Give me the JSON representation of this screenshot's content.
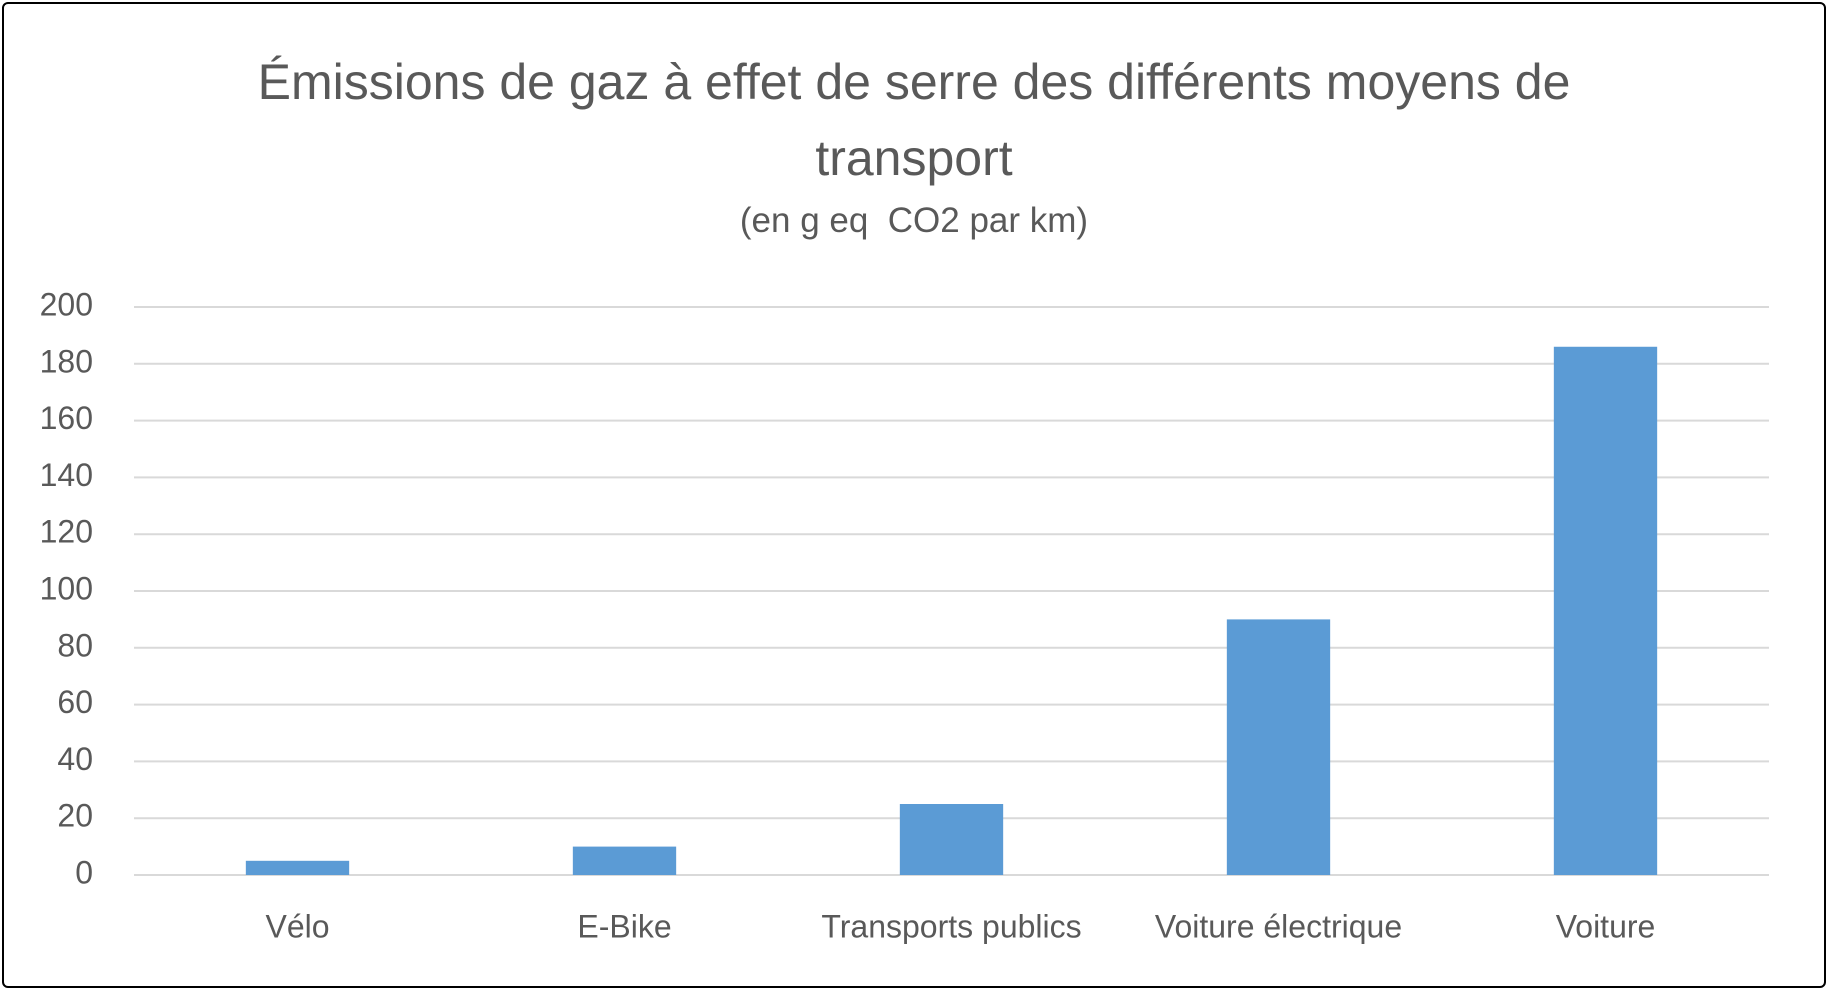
{
  "chart_data": {
    "type": "bar",
    "title": "Émissions de gaz à effet de serre des différents moyens de transport",
    "subtitle": "(en g eq  CO2 par km)",
    "categories": [
      "Vélo",
      "E-Bike",
      "Transports publics",
      "Voiture électrique",
      "Voiture"
    ],
    "values": [
      5,
      10,
      25,
      90,
      186
    ],
    "color": "#5b9bd5",
    "ylim": [
      0,
      200
    ],
    "yticks": [
      0,
      20,
      40,
      60,
      80,
      100,
      120,
      140,
      160,
      180,
      200
    ],
    "grid": true
  }
}
